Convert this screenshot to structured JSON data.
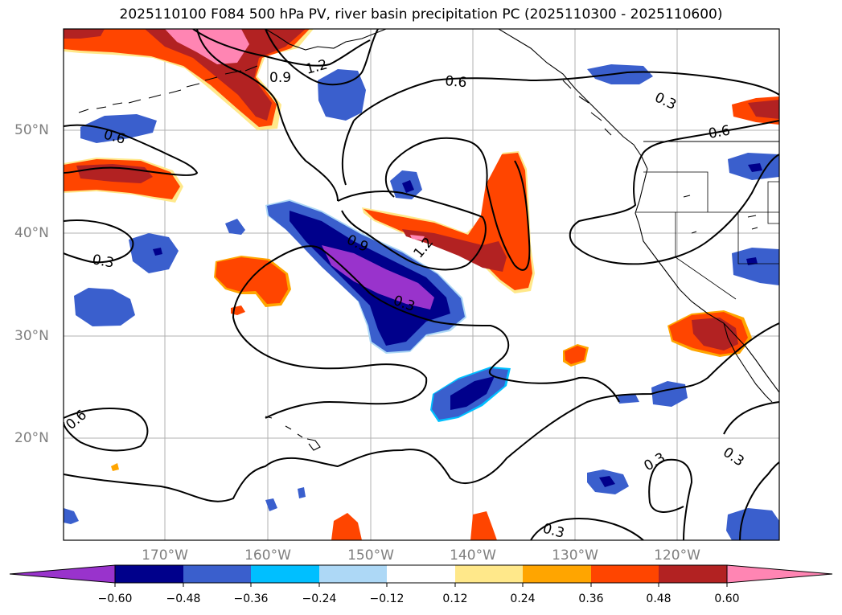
{
  "title": "2025110100 F084 500 hPa PV, river basin precipitation PC (2025110300 - 2025110600)",
  "lat_labels": [
    "50°N",
    "40°N",
    "30°N",
    "20°N"
  ],
  "lon_labels": [
    "170°W",
    "160°W",
    "150°W",
    "140°W",
    "130°W",
    "120°W"
  ],
  "contour_labels": [
    "0.6",
    "0.9",
    "1.2",
    "0.6",
    "0.3",
    "0.6",
    "0.9",
    "1.2",
    "0.3",
    "0.3",
    "0.6",
    "0.3",
    "0.3",
    "0.3"
  ],
  "colorbar": {
    "ticks": [
      "−0.60",
      "−0.48",
      "−0.36",
      "−0.24",
      "−0.12",
      "0.12",
      "0.24",
      "0.36",
      "0.48",
      "0.60"
    ],
    "colors": [
      "#9933cc",
      "#00008b",
      "#3a5fcd",
      "#00bfff",
      "#add8f6",
      "#ffffff",
      "#ffe88a",
      "#ffa500",
      "#ff4500",
      "#b22222",
      "#ff85b3"
    ]
  },
  "colors": {
    "neg_strong": "#9933cc",
    "neg_1": "#00008b",
    "neg_2": "#3a5fcd",
    "neg_3": "#00bfff",
    "neg_4": "#add8f6",
    "pos_1": "#ffe88a",
    "pos_2": "#ffa500",
    "pos_3": "#ff4500",
    "pos_4": "#b22222",
    "pos_5": "#ff85b3"
  }
}
